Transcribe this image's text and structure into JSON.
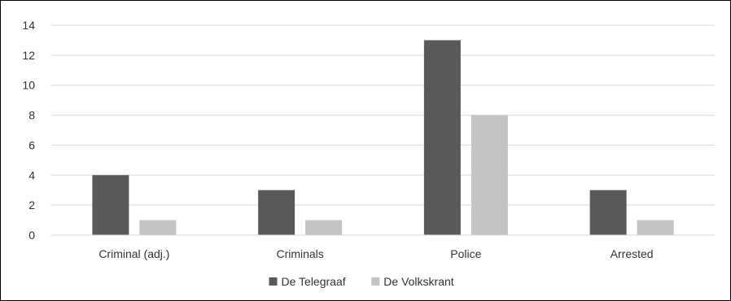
{
  "chart_data": {
    "type": "bar",
    "title": "",
    "xlabel": "",
    "ylabel": "",
    "categories": [
      "Criminal (adj.)",
      "Criminals",
      "Police",
      "Arrested"
    ],
    "series": [
      {
        "name": "De Telegraaf",
        "values": [
          4,
          3,
          13,
          3
        ],
        "color": "#595959"
      },
      {
        "name": "De Volkskrant",
        "values": [
          1,
          1,
          8,
          1
        ],
        "color": "#c4c4c4"
      }
    ],
    "ylim": [
      0,
      14
    ],
    "yticks": [
      0,
      2,
      4,
      6,
      8,
      10,
      12,
      14
    ],
    "grid": true,
    "gridline_color": "#d9d9d9",
    "legend_position": "bottom"
  }
}
